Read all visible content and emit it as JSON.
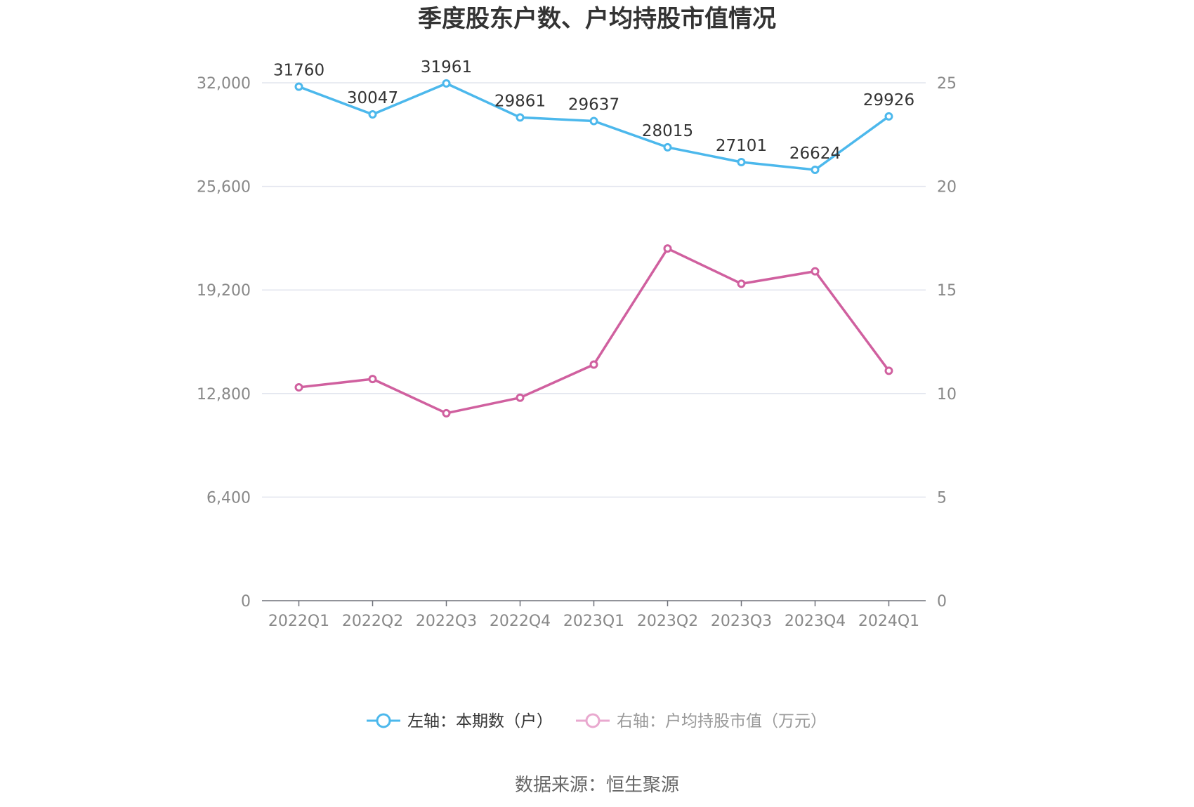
{
  "chart_data": {
    "type": "line",
    "title": "季度股东户数、户均持股市值情况",
    "categories": [
      "2022Q1",
      "2022Q2",
      "2022Q3",
      "2022Q4",
      "2023Q1",
      "2023Q2",
      "2023Q3",
      "2023Q4",
      "2024Q1"
    ],
    "left_axis": {
      "ticks": [
        "0",
        "6,400",
        "12,800",
        "19,200",
        "25,600",
        "32,000"
      ],
      "range": [
        0,
        32000
      ]
    },
    "right_axis": {
      "ticks": [
        "0",
        "5",
        "10",
        "15",
        "20",
        "25"
      ],
      "range": [
        0,
        25
      ]
    },
    "grid": true,
    "legend_position": "bottom",
    "series": [
      {
        "name": "左轴：本期数（户）",
        "axis": "left",
        "color": "#4cb8ec",
        "values": [
          31760,
          30047,
          31961,
          29861,
          29637,
          28015,
          27101,
          26624,
          29926
        ],
        "labels": [
          "31760",
          "30047",
          "31961",
          "29861",
          "29637",
          "28015",
          "27101",
          "26624",
          "29926"
        ]
      },
      {
        "name": "右轴：户均持股市值（万元）",
        "axis": "right",
        "color": "#d0609f",
        "legend_color": "#e9a9cf",
        "values": [
          10.3,
          10.7,
          9.05,
          9.8,
          11.4,
          17.0,
          15.3,
          15.9,
          11.1
        ]
      }
    ]
  },
  "source_text": "数据来源：恒生聚源"
}
